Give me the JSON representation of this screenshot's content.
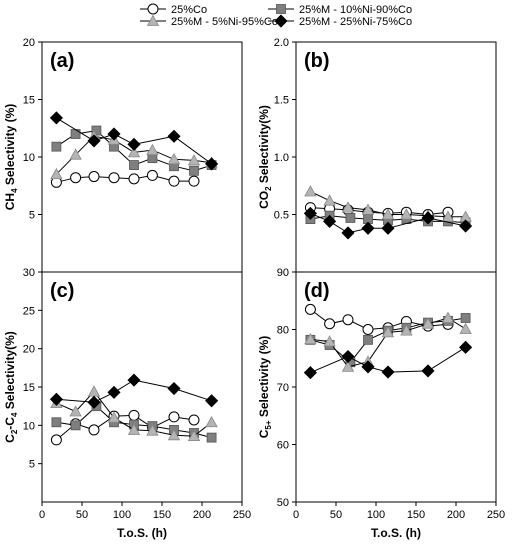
{
  "legend": {
    "items": [
      {
        "label": "25%Co",
        "marker": "circle",
        "fill": "#ffffff"
      },
      {
        "label": "25%M - 10%Ni-90%Co",
        "marker": "square",
        "fill": "#7f7f7f"
      },
      {
        "label": "25%M - 5%Ni-95%Co",
        "marker": "triangle",
        "fill": "#b4b4b4"
      },
      {
        "label": "25%M - 25%Ni-75%Co",
        "marker": "diamond",
        "fill": "#000000"
      }
    ]
  },
  "colors": {
    "axis": "#000000",
    "line": "#000000"
  },
  "chart_data": [
    {
      "type": "line",
      "panel_label": "(a)",
      "ylabel_parts": [
        [
          "CH",
          ""
        ],
        [
          "4",
          "sub"
        ],
        [
          " Selectivity (%)",
          ""
        ]
      ],
      "xlabel": "",
      "xlim": [
        0,
        250
      ],
      "ylim": [
        0,
        20
      ],
      "xticks": [],
      "yticks": [
        5,
        10,
        15,
        20
      ],
      "series": [
        {
          "name": "25%Co",
          "x": [
            18,
            42,
            65,
            90,
            115,
            138,
            165,
            190
          ],
          "y": [
            7.8,
            8.2,
            8.3,
            8.2,
            8.1,
            8.4,
            7.9,
            7.9
          ]
        },
        {
          "name": "25%M - 10%Ni-90%Co",
          "x": [
            18,
            42,
            68,
            90,
            115,
            138,
            165,
            190,
            212
          ],
          "y": [
            10.9,
            12.0,
            12.3,
            10.9,
            9.3,
            9.9,
            9.2,
            8.8,
            9.3
          ]
        },
        {
          "name": "25%M - 5%Ni-95%Co",
          "x": [
            18,
            42,
            65,
            90,
            115,
            138,
            165,
            190,
            212
          ],
          "y": [
            8.5,
            10.2,
            11.8,
            11.5,
            10.4,
            10.6,
            9.8,
            9.7,
            9.5
          ]
        },
        {
          "name": "25%M - 25%Ni-75%Co",
          "x": [
            18,
            65,
            90,
            115,
            165,
            212
          ],
          "y": [
            13.4,
            11.4,
            12.0,
            11.1,
            11.8,
            9.4
          ]
        }
      ]
    },
    {
      "type": "line",
      "panel_label": "(b)",
      "ylabel_parts": [
        [
          "CO",
          ""
        ],
        [
          "2",
          "sub"
        ],
        [
          " Selectivity(%)",
          ""
        ]
      ],
      "xlabel": "",
      "xlim": [
        0,
        250
      ],
      "ylim": [
        0,
        2
      ],
      "xticks": [],
      "yticks": [
        0.5,
        1.0,
        1.5,
        2.0
      ],
      "series": [
        {
          "name": "25%Co",
          "x": [
            18,
            42,
            65,
            90,
            115,
            138,
            165,
            190
          ],
          "y": [
            0.56,
            0.55,
            0.54,
            0.52,
            0.51,
            0.52,
            0.5,
            0.52
          ]
        },
        {
          "name": "25%M - 10%Ni-90%Co",
          "x": [
            18,
            42,
            68,
            90,
            115,
            138,
            165,
            190,
            212
          ],
          "y": [
            0.46,
            0.49,
            0.47,
            0.46,
            0.45,
            0.46,
            0.44,
            0.44,
            0.43
          ]
        },
        {
          "name": "25%M - 5%Ni-95%Co",
          "x": [
            18,
            42,
            65,
            90,
            115,
            138,
            165,
            190,
            212
          ],
          "y": [
            0.7,
            0.62,
            0.56,
            0.54,
            0.5,
            0.5,
            0.49,
            0.48,
            0.48
          ]
        },
        {
          "name": "25%M - 25%Ni-75%Co",
          "x": [
            18,
            42,
            65,
            90,
            115,
            165,
            212
          ],
          "y": [
            0.51,
            0.44,
            0.34,
            0.38,
            0.38,
            0.47,
            0.4
          ]
        }
      ]
    },
    {
      "type": "line",
      "panel_label": "(c)",
      "ylabel_parts": [
        [
          "C",
          ""
        ],
        [
          "2",
          "sub"
        ],
        [
          "-C",
          ""
        ],
        [
          "4",
          "sub"
        ],
        [
          " Selectivity(%)",
          ""
        ]
      ],
      "xlabel": "T.o.S. (h)",
      "xlim": [
        0,
        250
      ],
      "ylim": [
        0,
        30
      ],
      "xticks": [
        0,
        50,
        100,
        150,
        200,
        250
      ],
      "yticks": [
        5,
        10,
        15,
        20,
        25,
        30
      ],
      "series": [
        {
          "name": "25%Co",
          "x": [
            18,
            42,
            65,
            90,
            115,
            138,
            165,
            190
          ],
          "y": [
            8.1,
            10.2,
            9.4,
            11.2,
            11.3,
            9.7,
            11.1,
            10.7
          ]
        },
        {
          "name": "25%M - 10%Ni-90%Co",
          "x": [
            18,
            42,
            68,
            90,
            115,
            138,
            165,
            190,
            212
          ],
          "y": [
            10.4,
            10.0,
            12.5,
            10.4,
            10.1,
            9.9,
            9.4,
            9.0,
            8.4
          ]
        },
        {
          "name": "25%M - 5%Ni-95%Co",
          "x": [
            18,
            42,
            65,
            90,
            115,
            138,
            165,
            190,
            212
          ],
          "y": [
            12.9,
            11.8,
            14.4,
            11.0,
            9.4,
            9.3,
            8.7,
            8.6,
            10.4
          ]
        },
        {
          "name": "25%M - 25%Ni-75%Co",
          "x": [
            18,
            65,
            90,
            115,
            165,
            212
          ],
          "y": [
            13.4,
            13.0,
            14.3,
            15.9,
            14.8,
            13.2
          ]
        }
      ]
    },
    {
      "type": "line",
      "panel_label": "(d)",
      "ylabel_parts": [
        [
          "C",
          ""
        ],
        [
          "5+",
          "sub"
        ],
        [
          " Selectivity (%)",
          ""
        ]
      ],
      "xlabel": "T.o.S. (h)",
      "xlim": [
        0,
        250
      ],
      "ylim": [
        50,
        90
      ],
      "xticks": [
        0,
        50,
        100,
        150,
        200,
        250
      ],
      "yticks": [
        50,
        60,
        70,
        80,
        90
      ],
      "series": [
        {
          "name": "25%Co",
          "x": [
            18,
            42,
            65,
            90,
            115,
            138,
            165,
            190
          ],
          "y": [
            83.5,
            81.0,
            81.7,
            80.0,
            80.3,
            81.4,
            80.6,
            80.9
          ]
        },
        {
          "name": "25%M - 10%Ni-90%Co",
          "x": [
            18,
            42,
            68,
            90,
            115,
            138,
            165,
            190,
            212
          ],
          "y": [
            78.2,
            77.3,
            74.3,
            78.2,
            79.8,
            80.3,
            81.2,
            81.5,
            82.0
          ]
        },
        {
          "name": "25%M - 5%Ni-95%Co",
          "x": [
            18,
            42,
            65,
            90,
            115,
            138,
            165,
            190,
            212
          ],
          "y": [
            78.3,
            77.9,
            73.5,
            74.4,
            79.5,
            79.8,
            81.0,
            82.0,
            80.1
          ]
        },
        {
          "name": "25%M - 25%Ni-75%Co",
          "x": [
            18,
            65,
            90,
            115,
            165,
            212
          ],
          "y": [
            72.5,
            75.3,
            73.5,
            72.6,
            72.8,
            76.9
          ]
        }
      ]
    }
  ]
}
